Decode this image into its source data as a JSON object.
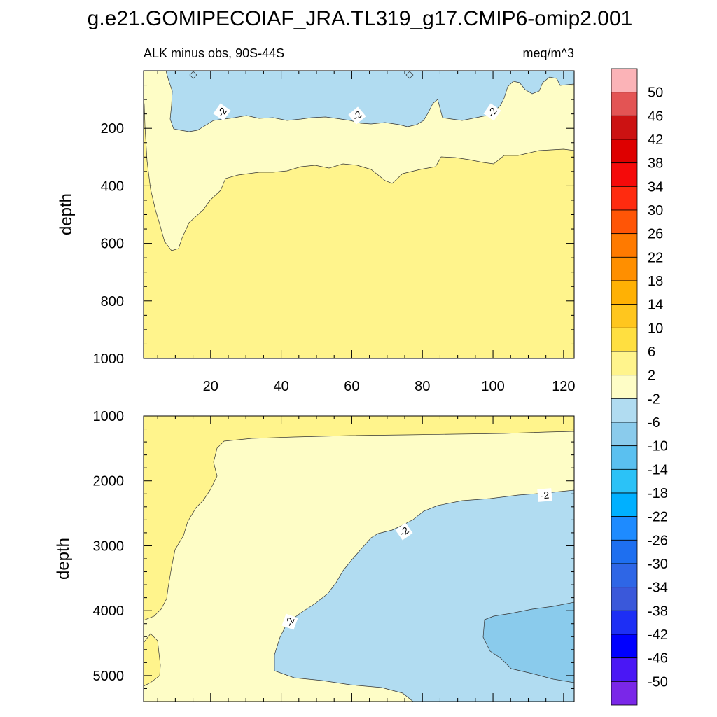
{
  "chart_data": {
    "type": "contour",
    "title": "g.e21.GOMIPECOIAF_JRA.TL319_g17.CMIP6-omip2.001",
    "subtitle_left": "ALK minus obs, 90S-44S",
    "subtitle_right": "meq/m^3",
    "colorbar": {
      "levels": [
        "50",
        "46",
        "42",
        "38",
        "34",
        "30",
        "26",
        "22",
        "18",
        "14",
        "10",
        "6",
        "2",
        "-2",
        "-6",
        "-10",
        "-14",
        "-18",
        "-22",
        "-26",
        "-30",
        "-34",
        "-38",
        "-42",
        "-46",
        "-50"
      ],
      "colors": [
        "#FBB3B7",
        "#E35454",
        "#CC1212",
        "#DE0000",
        "#F50A0A",
        "#FF2B0F",
        "#FF5506",
        "#FF7A00",
        "#FF8F00",
        "#FFB104",
        "#FFC61E",
        "#FFDF40",
        "#FFF48C",
        "#FEFDC6",
        "#B1DCF1",
        "#8ACBEC",
        "#5AC0F0",
        "#2BC2F7",
        "#00B0FF",
        "#1E8BFF",
        "#1E6FF0",
        "#2E66E6",
        "#3A58DA",
        "#1D2FF5",
        "#0000FF",
        "#4A17F5",
        "#7A27E8"
      ]
    },
    "panels": [
      {
        "name": "upper",
        "ylabel": "depth",
        "xlim": [
          1,
          123
        ],
        "ylim": [
          0,
          1000
        ],
        "xticks": [
          20,
          40,
          60,
          80,
          100,
          120
        ],
        "yticks": [
          200,
          400,
          600,
          800,
          1000
        ],
        "contour_labels": [
          "-2",
          "-2",
          "-2"
        ],
        "fill_regions": [
          {
            "band": "2 to 6",
            "color": "#FFF48C",
            "depth_range": [
              280,
              1000
            ]
          },
          {
            "band": "-2 to 2",
            "color": "#FEFDC6",
            "depth_range": [
              0,
              620
            ]
          },
          {
            "band": "-6 to -2",
            "color": "#B1DCF1",
            "depth_range": [
              0,
              210
            ]
          }
        ]
      },
      {
        "name": "lower",
        "ylabel": "depth",
        "xlim": [
          1,
          123
        ],
        "ylim": [
          1000,
          5400
        ],
        "yticks": [
          1000,
          2000,
          3000,
          4000,
          5000
        ],
        "contour_labels": [
          "-2",
          "-2",
          "-2"
        ],
        "fill_regions": [
          {
            "band": "2 to 6",
            "color": "#FFF48C",
            "depth_range": [
              1000,
              5200
            ]
          },
          {
            "band": "-2 to 2",
            "color": "#FEFDC6",
            "depth_range": [
              1000,
              5400
            ]
          },
          {
            "band": "-6 to -2",
            "color": "#B1DCF1",
            "depth_range": [
              2100,
              5400
            ]
          },
          {
            "band": "-10 to -6",
            "color": "#8ACBEC",
            "depth_range": [
              3800,
              5100
            ]
          }
        ]
      }
    ]
  }
}
